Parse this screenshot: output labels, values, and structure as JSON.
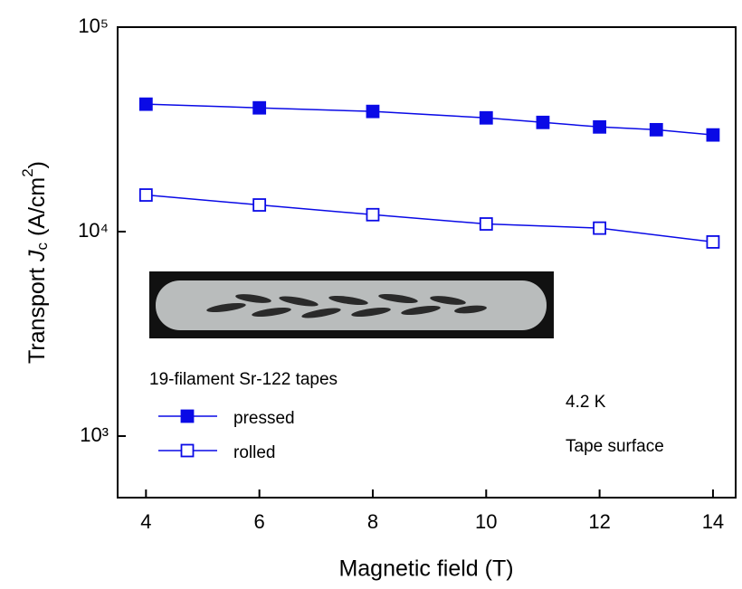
{
  "chart_data": {
    "type": "line",
    "xlabel": "Magnetic field (T)",
    "ylabel": [
      "Transport ",
      "J",
      "c",
      " (A/cm",
      "2",
      ")"
    ],
    "log_y": true,
    "xlim": [
      3.5,
      14.4
    ],
    "xticks": [
      4,
      6,
      8,
      10,
      12,
      14
    ],
    "ylim": [
      500,
      100000
    ],
    "yticks": [
      {
        "value": 1000,
        "label": "10³"
      },
      {
        "value": 10000,
        "label": "10⁴"
      },
      {
        "value": 100000,
        "label": "10⁵"
      }
    ],
    "series": [
      {
        "name": "pressed",
        "color": "#0a0ae6",
        "filled": true,
        "x": [
          4,
          6,
          8,
          10,
          11,
          12,
          13,
          14
        ],
        "values": [
          42000,
          40300,
          38700,
          36000,
          34200,
          32500,
          31500,
          29700
        ]
      },
      {
        "name": "rolled",
        "color": "#0a0ae6",
        "filled": false,
        "x": [
          4,
          6,
          8,
          10,
          12,
          14
        ],
        "values": [
          15100,
          13500,
          12100,
          10900,
          10400,
          8900
        ]
      }
    ],
    "annotations": [
      "19-filament Sr-122 tapes",
      "4.2 K",
      "Tape surface"
    ]
  }
}
